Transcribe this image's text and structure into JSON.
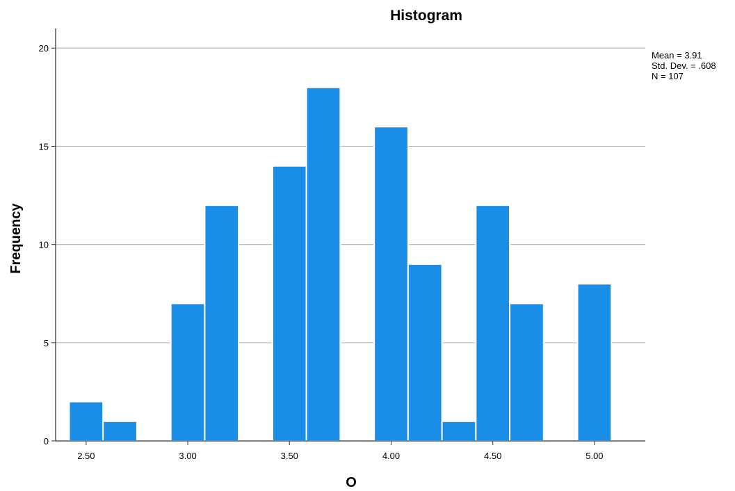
{
  "chart_data": {
    "type": "bar",
    "subtype": "histogram",
    "title": "Histogram",
    "xlabel": "O",
    "ylabel": "Frequency",
    "xlim": [
      2.35,
      5.25
    ],
    "ylim": [
      0,
      21
    ],
    "x_ticks": [
      2.5,
      3.0,
      3.5,
      4.0,
      4.5,
      5.0
    ],
    "x_tick_labels": [
      "2.50",
      "3.00",
      "3.50",
      "4.00",
      "4.50",
      "5.00"
    ],
    "y_ticks": [
      0,
      5,
      10,
      15,
      20
    ],
    "y_tick_labels": [
      "0",
      "5",
      "10",
      "15",
      "20"
    ],
    "grid": "horizontal",
    "bin_width": 0.1667,
    "bins": [
      {
        "start": 2.4167,
        "end": 2.5833,
        "value": 2
      },
      {
        "start": 2.5833,
        "end": 2.75,
        "value": 1
      },
      {
        "start": 2.9167,
        "end": 3.0833,
        "value": 7
      },
      {
        "start": 3.0833,
        "end": 3.25,
        "value": 12
      },
      {
        "start": 3.4167,
        "end": 3.5833,
        "value": 14
      },
      {
        "start": 3.5833,
        "end": 3.75,
        "value": 18
      },
      {
        "start": 3.9167,
        "end": 4.0833,
        "value": 16
      },
      {
        "start": 4.0833,
        "end": 4.25,
        "value": 9
      },
      {
        "start": 4.25,
        "end": 4.4167,
        "value": 1
      },
      {
        "start": 4.4167,
        "end": 4.5833,
        "value": 12
      },
      {
        "start": 4.5833,
        "end": 4.75,
        "value": 7
      },
      {
        "start": 4.9167,
        "end": 5.0833,
        "value": 8
      }
    ],
    "stats": [
      "Mean = 3.91",
      "Std. Dev. = .608",
      "N = 107"
    ],
    "legend_placement": "top-right",
    "bar_color": "#1a8ee6",
    "bar_edge_color": "#ffffff",
    "grid_color": "#bdbdbd",
    "axis_color": "#555555"
  }
}
